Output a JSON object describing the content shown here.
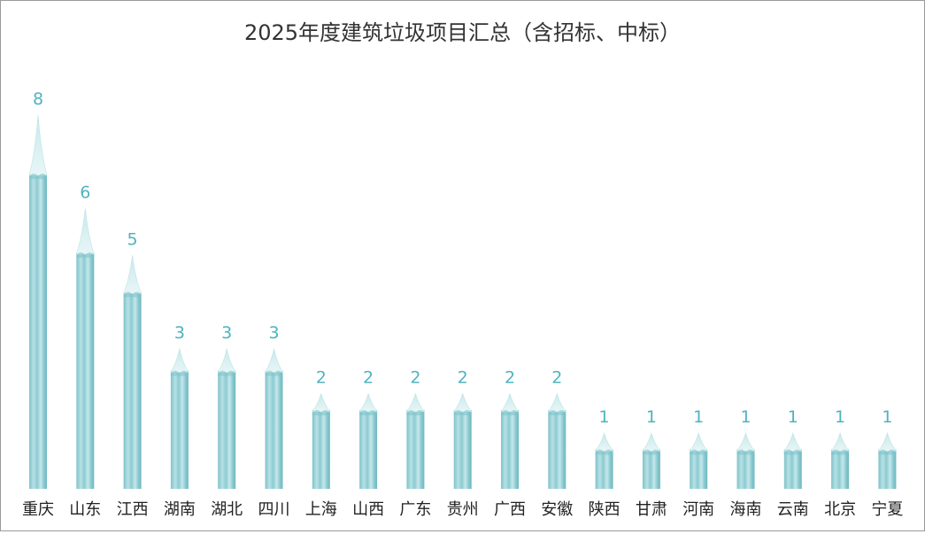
{
  "chart_data": {
    "type": "bar",
    "title": "2025年度建筑垃圾项目汇总（含招标、中标）",
    "categories": [
      "重庆",
      "山东",
      "江西",
      "湖南",
      "湖北",
      "四川",
      "上海",
      "山西",
      "广东",
      "贵州",
      "广西",
      "安徽",
      "陕西",
      "甘肃",
      "河南",
      "海南",
      "云南",
      "北京",
      "宁夏"
    ],
    "values": [
      8,
      6,
      5,
      3,
      3,
      3,
      2,
      2,
      2,
      2,
      2,
      2,
      1,
      1,
      1,
      1,
      1,
      1,
      1
    ],
    "xlabel": "",
    "ylabel": "",
    "ylim": [
      0,
      8
    ],
    "grid": false,
    "legend": "none",
    "colors": {
      "bar": "#9fd4d9",
      "bar_dark": "#7cc2c9",
      "bar_light": "#d9eff1",
      "label": "#4fb3bf",
      "axis_text": "#222222"
    }
  }
}
